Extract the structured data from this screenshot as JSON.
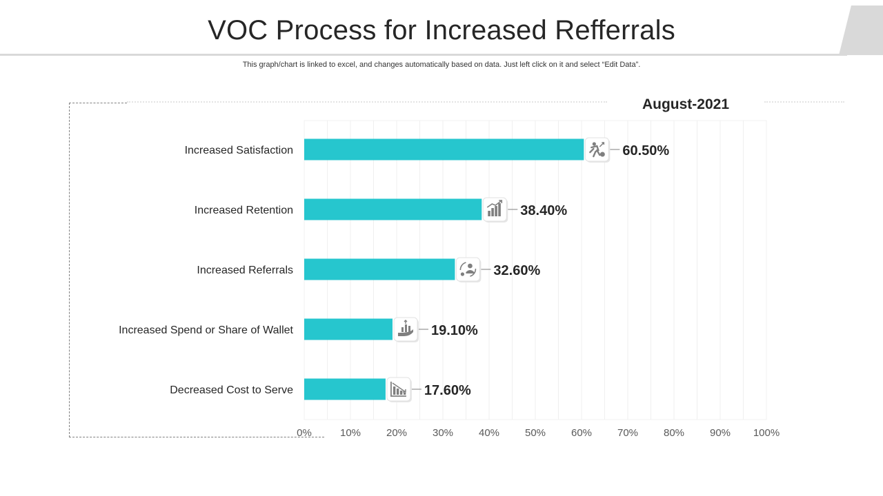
{
  "header": {
    "title": "VOC Process for Increased Refferrals",
    "note": "This graph/chart is linked to excel,  and changes automatically based on data. Just left click on it and select “Edit Data”."
  },
  "colors": {
    "bar": "#26C6CE",
    "text": "#262626",
    "axis_text": "#595959",
    "grid": "#efefef",
    "icon": "#7f7f7f"
  },
  "chart_data": {
    "type": "bar",
    "orientation": "horizontal",
    "title": "August-2021",
    "categories": [
      "Increased Satisfaction",
      "Increased Retention",
      "Increased Referrals",
      "Increased Spend or Share of Wallet",
      "Decreased Cost to Serve"
    ],
    "values": [
      60.5,
      38.4,
      32.6,
      19.1,
      17.6
    ],
    "value_labels": [
      "60.50%",
      "38.40%",
      "32.60%",
      "19.10%",
      "17.60%"
    ],
    "icons": [
      "climbing-person-icon",
      "growth-bar-chart-icon",
      "referral-cycle-icon",
      "hand-growth-icon",
      "declining-cost-chart-icon"
    ],
    "xlim": [
      0,
      100
    ],
    "x_ticks": [
      "0%",
      "10%",
      "20%",
      "30%",
      "40%",
      "50%",
      "60%",
      "70%",
      "80%",
      "90%",
      "100%"
    ],
    "grid": true,
    "legend": "none"
  }
}
